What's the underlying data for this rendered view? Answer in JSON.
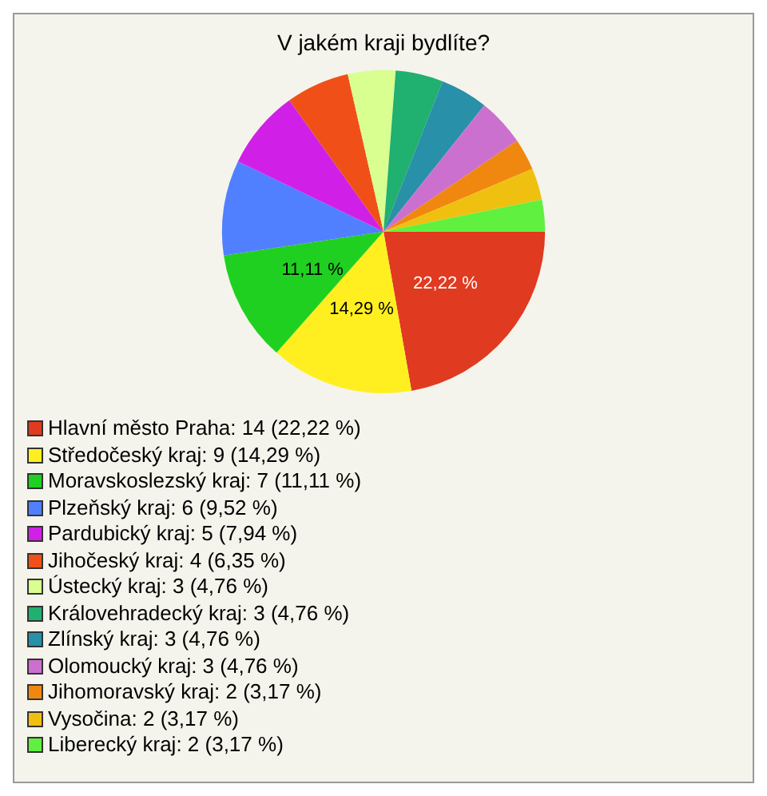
{
  "chart_data": {
    "type": "pie",
    "title": "V jakém kraji bydlíte?",
    "legend": "bottom",
    "categories": [
      "Hlavní město Praha: 14 (22,22 %)",
      "Středočeský kraj: 9 (14,29 %)",
      "Moravskoslezský kraj: 7 (11,11 %)",
      "Plzeňský kraj: 6 (9,52 %)",
      "Pardubický kraj: 5 (7,94 %)",
      "Jihočeský kraj: 4 (6,35 %)",
      "Ústecký kraj: 3 (4,76 %)",
      "Královehradecký kraj: 3 (4,76 %)",
      "Zlínský kraj: 3 (4,76 %)",
      "Olomoucký kraj: 3 (4,76 %)",
      "Jihomoravský kraj: 2 (3,17 %)",
      "Vysočina: 2 (3,17 %)",
      "Liberecký kraj: 2 (3,17 %)"
    ],
    "values": [
      22.22,
      14.29,
      11.11,
      9.52,
      7.94,
      6.35,
      4.76,
      4.76,
      4.76,
      4.76,
      3.17,
      3.17,
      3.17
    ],
    "colors": [
      "#e03a20",
      "#ffef20",
      "#20d020",
      "#5080ff",
      "#d020e8",
      "#f05018",
      "#d8ff90",
      "#20b070",
      "#2890a8",
      "#cc70d0",
      "#f08810",
      "#f0c010",
      "#60f040"
    ],
    "value_labels": [
      "22,22 %",
      "14,29 %",
      "11,11 %",
      null,
      null,
      null,
      null,
      null,
      null,
      null,
      null,
      null,
      null
    ]
  }
}
